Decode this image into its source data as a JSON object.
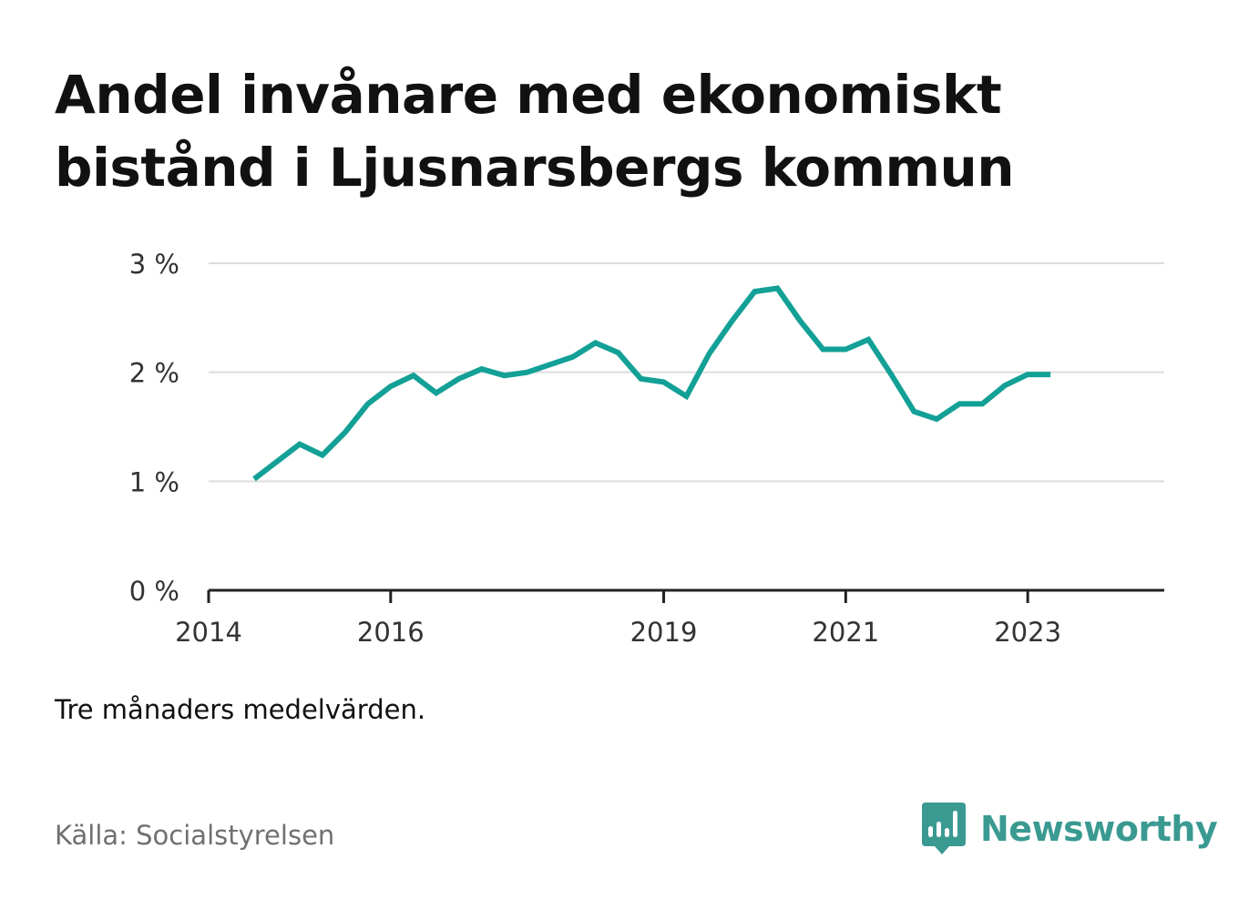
{
  "title_lines": [
    "Andel invånare med ekonomiskt",
    "bistånd i Ljusnarsbergs kommun"
  ],
  "note": "Tre månaders medelvärden.",
  "source": "Källa: Socialstyrelsen",
  "brand": {
    "name": "Newsworthy",
    "icon": "bar-chart-speech-bubble-icon",
    "color": "#3a9a91"
  },
  "colors": {
    "line": "#13a096",
    "grid": "#dddddd",
    "axis": "#222222",
    "tick_text": "#333333"
  },
  "chart_data": {
    "type": "line",
    "title": "Andel invånare med ekonomiskt bistånd i Ljusnarsbergs kommun",
    "xlabel": "",
    "ylabel": "",
    "ylim": [
      0,
      3
    ],
    "yticks": [
      0,
      1,
      2,
      3
    ],
    "ytick_labels": [
      "0 %",
      "1 %",
      "2 %",
      "3 %"
    ],
    "xticks": [
      2014,
      2016,
      2019,
      2021,
      2023
    ],
    "xtick_labels": [
      "2014",
      "2016",
      "2019",
      "2021",
      "2023"
    ],
    "xlim": [
      2014,
      2024.5
    ],
    "grid": true,
    "legend": "none",
    "series": [
      {
        "x": [
          "2014-07",
          "2014-10",
          "2015-01",
          "2015-04",
          "2015-07",
          "2015-10",
          "2016-01",
          "2016-04",
          "2016-07",
          "2016-10",
          "2017-01",
          "2017-04",
          "2017-07",
          "2017-10",
          "2018-01",
          "2018-04",
          "2018-07",
          "2018-10",
          "2019-01",
          "2019-04",
          "2019-07",
          "2019-10",
          "2020-01",
          "2020-04",
          "2020-07",
          "2020-10",
          "2021-01",
          "2021-04",
          "2021-07",
          "2021-10",
          "2022-01",
          "2022-04",
          "2022-07",
          "2022-10",
          "2023-01",
          "2023-04"
        ],
        "values": [
          1.02,
          1.18,
          1.34,
          1.24,
          1.45,
          1.71,
          1.87,
          1.97,
          1.81,
          1.94,
          2.03,
          1.97,
          2.0,
          2.07,
          2.14,
          2.27,
          2.18,
          1.94,
          1.91,
          1.78,
          2.17,
          2.47,
          2.74,
          2.77,
          2.47,
          2.21,
          2.21,
          2.3,
          1.98,
          1.64,
          1.57,
          1.71,
          1.71,
          1.88,
          1.98,
          1.98
        ]
      }
    ]
  }
}
